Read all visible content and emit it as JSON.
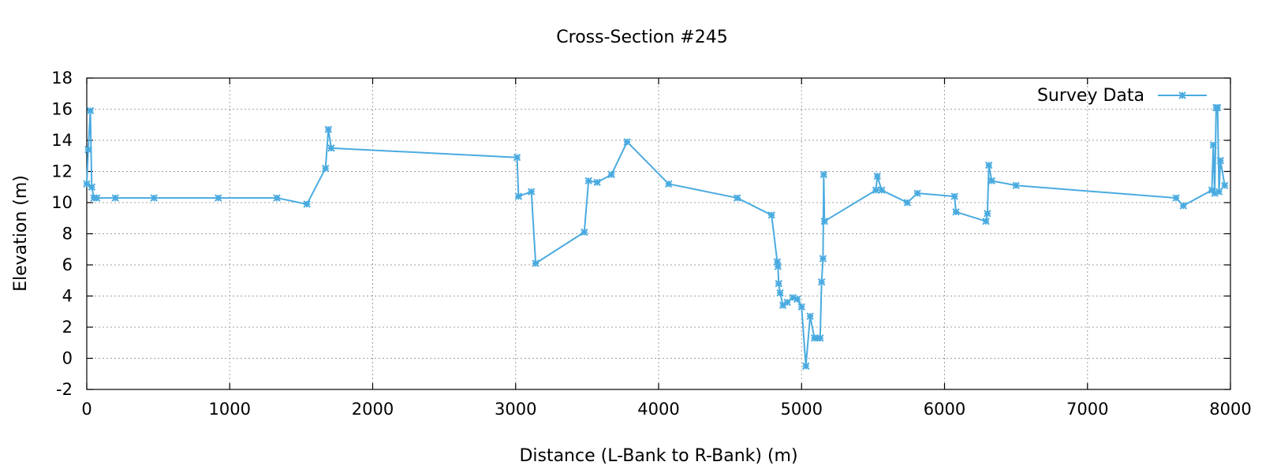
{
  "chart_data": {
    "type": "line",
    "title": "Cross-Section #245",
    "xlabel": "Distance (L-Bank to R-Bank) (m)",
    "ylabel": "Elevation (m)",
    "xlim": [
      0,
      8000
    ],
    "ylim": [
      -2,
      18
    ],
    "x_ticks": [
      0,
      1000,
      2000,
      3000,
      4000,
      5000,
      6000,
      7000,
      8000
    ],
    "y_ticks": [
      -2,
      0,
      2,
      4,
      6,
      8,
      10,
      12,
      14,
      16,
      18
    ],
    "grid": true,
    "legend_position": "top-right",
    "series_color": "#4aabe0",
    "series": [
      {
        "name": "Survey Data",
        "marker": "star",
        "x": [
          0,
          10,
          25,
          35,
          50,
          70,
          200,
          470,
          920,
          1330,
          1540,
          1670,
          1690,
          1710,
          3010,
          3020,
          3110,
          3140,
          3480,
          3510,
          3570,
          3670,
          3780,
          4070,
          4550,
          4790,
          4830,
          4835,
          4840,
          4850,
          4870,
          4900,
          4940,
          4970,
          5000,
          5030,
          5060,
          5090,
          5110,
          5130,
          5140,
          5150,
          5155,
          5160,
          5520,
          5530,
          5560,
          5740,
          5810,
          6070,
          6080,
          6290,
          6300,
          6310,
          6330,
          6500,
          7620,
          7670,
          7870,
          7880,
          7890,
          7900,
          7910,
          7920,
          7930,
          7960
        ],
        "y": [
          11.2,
          13.4,
          15.9,
          11.0,
          10.3,
          10.3,
          10.3,
          10.3,
          10.3,
          10.3,
          9.9,
          12.2,
          14.7,
          13.5,
          12.9,
          10.4,
          10.7,
          6.1,
          8.1,
          11.4,
          11.3,
          11.8,
          13.9,
          11.2,
          10.3,
          9.2,
          6.2,
          5.9,
          4.8,
          4.2,
          3.4,
          3.6,
          3.9,
          3.8,
          3.3,
          -0.5,
          2.7,
          1.3,
          1.3,
          1.3,
          4.9,
          6.4,
          11.8,
          8.8,
          10.8,
          11.7,
          10.8,
          10.0,
          10.6,
          10.4,
          9.4,
          8.8,
          9.3,
          12.4,
          11.4,
          11.1,
          10.3,
          9.8,
          10.8,
          13.7,
          10.6,
          16.1,
          16.1,
          10.7,
          12.7,
          11.1
        ]
      }
    ]
  }
}
